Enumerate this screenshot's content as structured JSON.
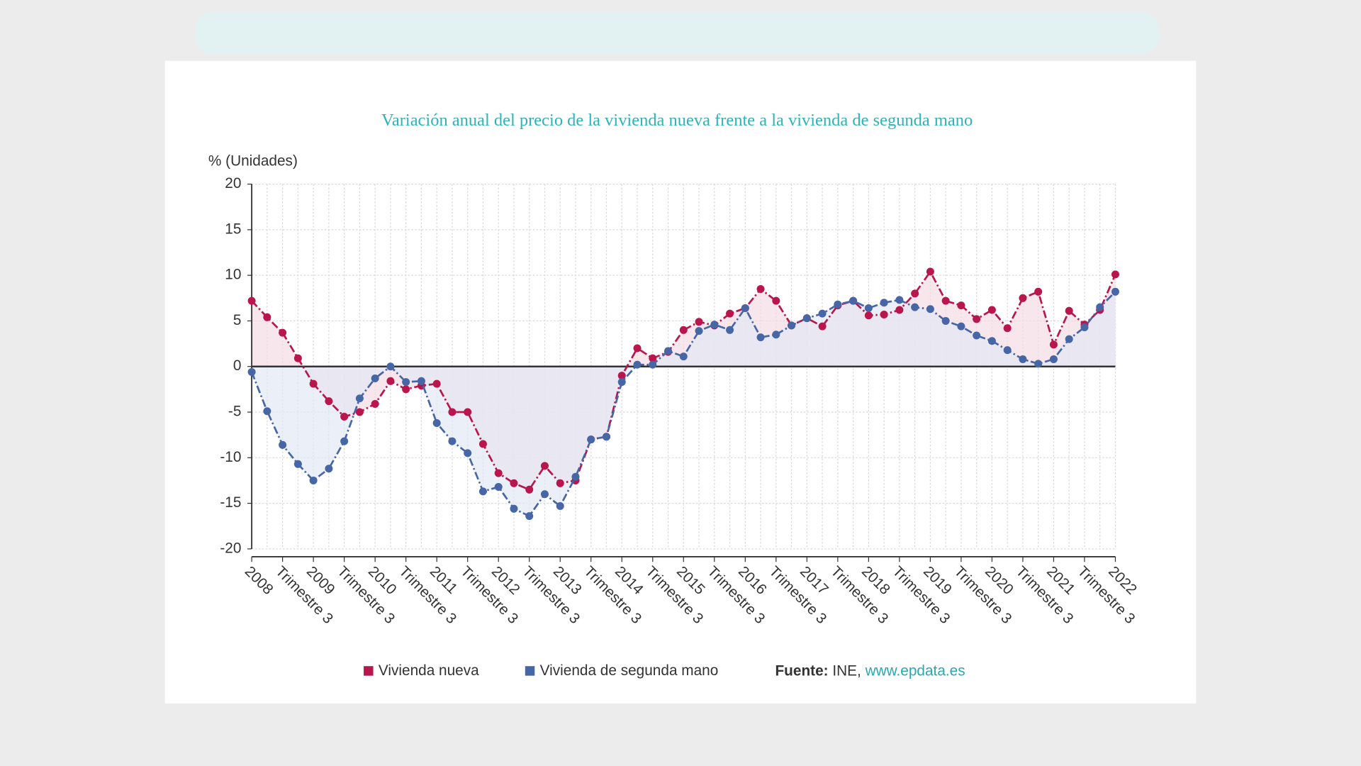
{
  "chart_data": {
    "type": "line",
    "title": "Variación anual del precio de la vivienda nueva frente a la vivienda de segunda mano",
    "y_label": "% (Unidades)",
    "categories": [
      "2008",
      null,
      "Trimestre 3",
      null,
      "2009",
      null,
      "Trimestre 3",
      null,
      "2010",
      null,
      "Trimestre 3",
      null,
      "2011",
      null,
      "Trimestre 3",
      null,
      "2012",
      null,
      "Trimestre 3",
      null,
      "2013",
      null,
      "Trimestre 3",
      null,
      "2014",
      null,
      "Trimestre 3",
      null,
      "2015",
      null,
      "Trimestre 3",
      null,
      "2016",
      null,
      "Trimestre 3",
      null,
      "2017",
      null,
      "Trimestre 3",
      null,
      "2018",
      null,
      "Trimestre 3",
      null,
      "2019",
      null,
      "Trimestre 3",
      null,
      "2020",
      null,
      "Trimestre 3",
      null,
      "2021",
      null,
      "Trimestre 3",
      null,
      "2022"
    ],
    "series": [
      {
        "name": "Vivienda nueva",
        "color": "#b8164c",
        "fill": "#f3dde6",
        "values": [
          7.2,
          5.4,
          3.7,
          0.9,
          -1.9,
          -3.8,
          -5.5,
          -5.0,
          -4.1,
          -1.6,
          -2.5,
          -2.1,
          -1.9,
          -5.0,
          -5.0,
          -8.5,
          -11.7,
          -12.8,
          -13.5,
          -10.9,
          -12.8,
          -12.5,
          -8.0,
          -7.7,
          -1.0,
          2.0,
          0.9,
          1.6,
          4.0,
          4.9,
          4.5,
          5.8,
          6.4,
          8.5,
          7.2,
          4.5,
          5.3,
          4.4,
          6.7,
          7.2,
          5.6,
          5.7,
          6.2,
          8.0,
          10.4,
          7.2,
          6.7,
          5.2,
          6.2,
          4.2,
          7.5,
          8.2,
          2.4,
          6.1,
          4.6,
          6.2,
          10.1
        ]
      },
      {
        "name": "Vivienda de segunda mano",
        "color": "#4766a6",
        "fill": "#e3e8f3",
        "values": [
          -0.6,
          -4.9,
          -8.6,
          -10.7,
          -12.5,
          -11.2,
          -8.2,
          -3.5,
          -1.3,
          0.0,
          -1.7,
          -1.6,
          -6.2,
          -8.2,
          -9.5,
          -13.7,
          -13.2,
          -15.6,
          -16.4,
          -14.0,
          -15.3,
          -12.1,
          -8.0,
          -7.7,
          -1.7,
          0.2,
          0.2,
          1.7,
          1.1,
          3.9,
          4.6,
          4.0,
          6.4,
          3.2,
          3.5,
          4.5,
          5.3,
          5.8,
          6.8,
          7.2,
          6.4,
          7.0,
          7.3,
          6.5,
          6.3,
          5.0,
          4.4,
          3.4,
          2.8,
          1.8,
          0.8,
          0.3,
          0.8,
          3.0,
          4.3,
          6.5,
          8.2
        ]
      }
    ],
    "ylim": [
      -20,
      20
    ],
    "yticks": [
      -20,
      -15,
      -10,
      -5,
      0,
      5,
      10,
      15,
      20
    ],
    "grid": true,
    "legend": "bottom",
    "source": {
      "label": "Fuente:",
      "name": "INE,",
      "url": "www.epdata.es"
    }
  }
}
